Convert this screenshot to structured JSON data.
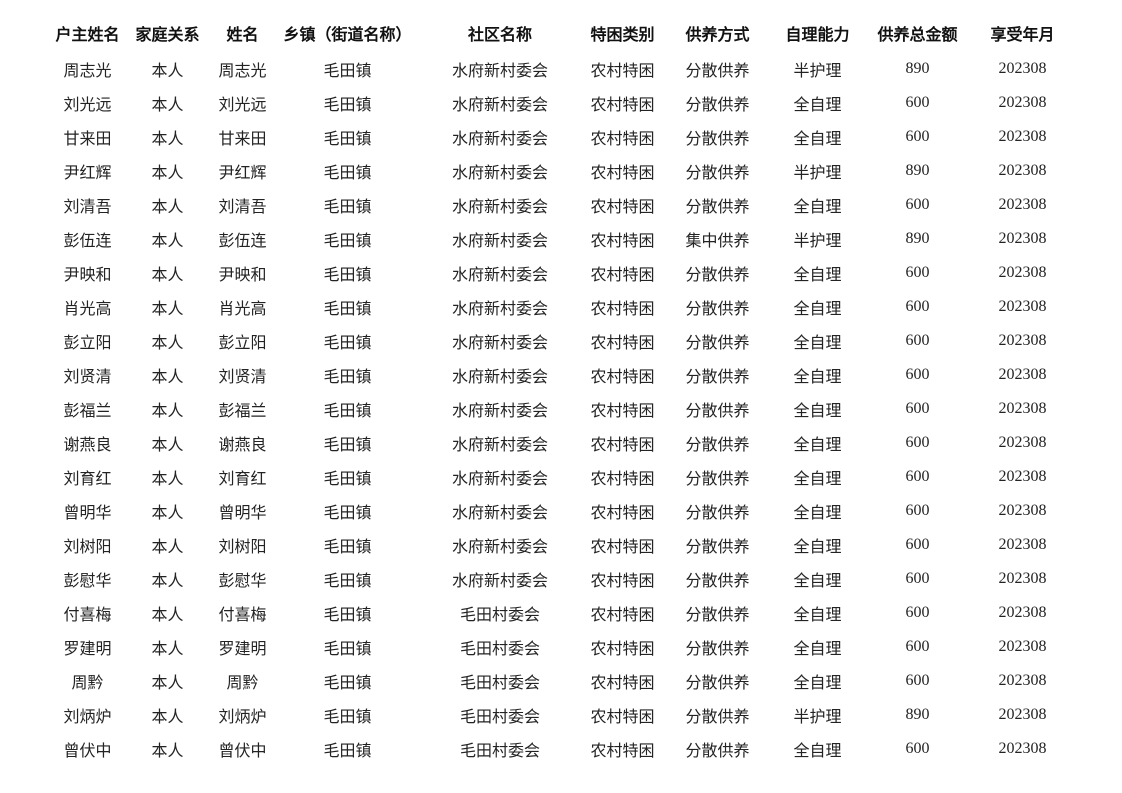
{
  "page": {
    "background_color": "#ffffff",
    "text_color": "#232323",
    "header_text_color": "#111111"
  },
  "table": {
    "columns": [
      {
        "key": "householder-name",
        "label": "户主姓名"
      },
      {
        "key": "relationship",
        "label": "家庭关系"
      },
      {
        "key": "name",
        "label": "姓名"
      },
      {
        "key": "township",
        "label": "乡镇（街道名称）"
      },
      {
        "key": "community",
        "label": "社区名称"
      },
      {
        "key": "category",
        "label": "特困类别"
      },
      {
        "key": "support-method",
        "label": "供养方式"
      },
      {
        "key": "self-care",
        "label": "自理能力"
      },
      {
        "key": "total-amount",
        "label": "供养总金额"
      },
      {
        "key": "period",
        "label": "享受年月"
      }
    ],
    "rows": [
      [
        "周志光",
        "本人",
        "周志光",
        "毛田镇",
        "水府新村委会",
        "农村特困",
        "分散供养",
        "半护理",
        "890",
        "202308"
      ],
      [
        "刘光远",
        "本人",
        "刘光远",
        "毛田镇",
        "水府新村委会",
        "农村特困",
        "分散供养",
        "全自理",
        "600",
        "202308"
      ],
      [
        "甘来田",
        "本人",
        "甘来田",
        "毛田镇",
        "水府新村委会",
        "农村特困",
        "分散供养",
        "全自理",
        "600",
        "202308"
      ],
      [
        "尹红辉",
        "本人",
        "尹红辉",
        "毛田镇",
        "水府新村委会",
        "农村特困",
        "分散供养",
        "半护理",
        "890",
        "202308"
      ],
      [
        "刘清吾",
        "本人",
        "刘清吾",
        "毛田镇",
        "水府新村委会",
        "农村特困",
        "分散供养",
        "全自理",
        "600",
        "202308"
      ],
      [
        "彭伍连",
        "本人",
        "彭伍连",
        "毛田镇",
        "水府新村委会",
        "农村特困",
        "集中供养",
        "半护理",
        "890",
        "202308"
      ],
      [
        "尹映和",
        "本人",
        "尹映和",
        "毛田镇",
        "水府新村委会",
        "农村特困",
        "分散供养",
        "全自理",
        "600",
        "202308"
      ],
      [
        "肖光高",
        "本人",
        "肖光高",
        "毛田镇",
        "水府新村委会",
        "农村特困",
        "分散供养",
        "全自理",
        "600",
        "202308"
      ],
      [
        "彭立阳",
        "本人",
        "彭立阳",
        "毛田镇",
        "水府新村委会",
        "农村特困",
        "分散供养",
        "全自理",
        "600",
        "202308"
      ],
      [
        "刘贤清",
        "本人",
        "刘贤清",
        "毛田镇",
        "水府新村委会",
        "农村特困",
        "分散供养",
        "全自理",
        "600",
        "202308"
      ],
      [
        "彭福兰",
        "本人",
        "彭福兰",
        "毛田镇",
        "水府新村委会",
        "农村特困",
        "分散供养",
        "全自理",
        "600",
        "202308"
      ],
      [
        "谢燕良",
        "本人",
        "谢燕良",
        "毛田镇",
        "水府新村委会",
        "农村特困",
        "分散供养",
        "全自理",
        "600",
        "202308"
      ],
      [
        "刘育红",
        "本人",
        "刘育红",
        "毛田镇",
        "水府新村委会",
        "农村特困",
        "分散供养",
        "全自理",
        "600",
        "202308"
      ],
      [
        "曾明华",
        "本人",
        "曾明华",
        "毛田镇",
        "水府新村委会",
        "农村特困",
        "分散供养",
        "全自理",
        "600",
        "202308"
      ],
      [
        "刘树阳",
        "本人",
        "刘树阳",
        "毛田镇",
        "水府新村委会",
        "农村特困",
        "分散供养",
        "全自理",
        "600",
        "202308"
      ],
      [
        "彭慰华",
        "本人",
        "彭慰华",
        "毛田镇",
        "水府新村委会",
        "农村特困",
        "分散供养",
        "全自理",
        "600",
        "202308"
      ],
      [
        "付喜梅",
        "本人",
        "付喜梅",
        "毛田镇",
        "毛田村委会",
        "农村特困",
        "分散供养",
        "全自理",
        "600",
        "202308"
      ],
      [
        "罗建明",
        "本人",
        "罗建明",
        "毛田镇",
        "毛田村委会",
        "农村特困",
        "分散供养",
        "全自理",
        "600",
        "202308"
      ],
      [
        "周黔",
        "本人",
        "周黔",
        "毛田镇",
        "毛田村委会",
        "农村特困",
        "分散供养",
        "全自理",
        "600",
        "202308"
      ],
      [
        "刘炳炉",
        "本人",
        "刘炳炉",
        "毛田镇",
        "毛田村委会",
        "农村特困",
        "分散供养",
        "半护理",
        "890",
        "202308"
      ],
      [
        "曾伏中",
        "本人",
        "曾伏中",
        "毛田镇",
        "毛田村委会",
        "农村特困",
        "分散供养",
        "全自理",
        "600",
        "202308"
      ]
    ]
  }
}
